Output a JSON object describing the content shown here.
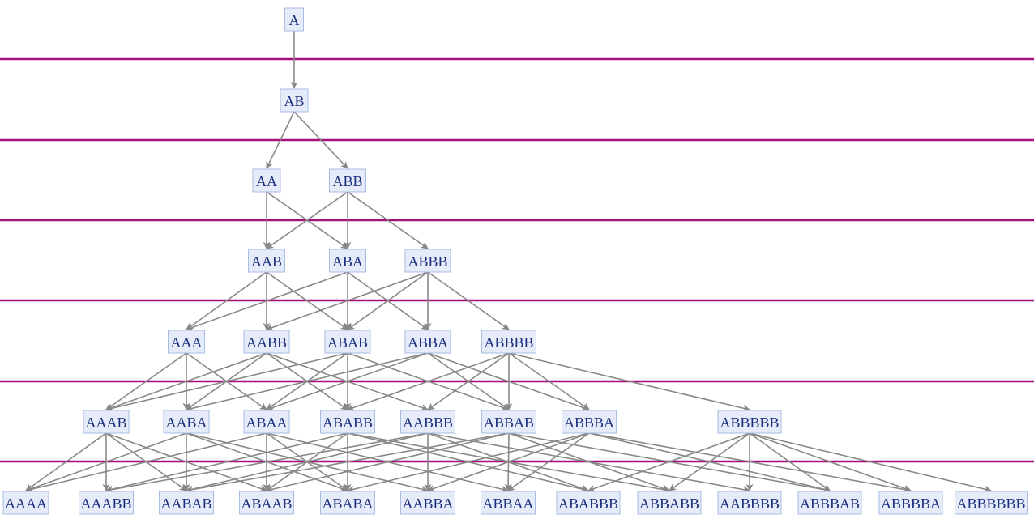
{
  "rows": [
    [
      "A"
    ],
    [
      "AB"
    ],
    [
      "AA",
      "ABB"
    ],
    [
      "AAB",
      "ABA",
      "ABBB"
    ],
    [
      "AAA",
      "AABB",
      "ABAB",
      "ABBA",
      "ABBBB"
    ],
    [
      "AAAB",
      "AABA",
      "ABAA",
      "ABABB",
      "AABBB",
      "ABBAB",
      "ABBBA",
      "ABBBBB"
    ],
    [
      "AAAA",
      "AAABB",
      "AABAB",
      "ABAAB",
      "ABABA",
      "AABBA",
      "ABBAA",
      "ABABBB",
      "ABBABB",
      "AABBBB",
      "ABBBAB",
      "ABBBBA",
      "ABBBBBB"
    ]
  ]
}
